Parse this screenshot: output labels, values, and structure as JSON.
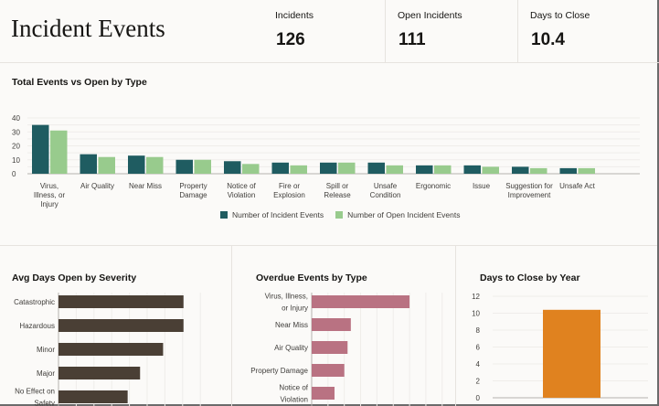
{
  "header": {
    "title": "Incident Events"
  },
  "kpis": [
    {
      "label": "Incidents",
      "value": "126"
    },
    {
      "label": "Open Incidents",
      "value": "111"
    },
    {
      "label": "Days to Close",
      "value": "10.4"
    }
  ],
  "colors": {
    "incidents": "#1f5c61",
    "open": "#98cb8d",
    "severity": "#4a3f35",
    "overdue": "#b97282",
    "days": "#e0821f"
  },
  "chart_data": [
    {
      "type": "bar",
      "title": "Total Events vs Open by Type",
      "ylim": [
        0,
        40
      ],
      "yticks": [
        "0",
        "10",
        "20",
        "30",
        "40"
      ],
      "grid": true,
      "legend": "bottom",
      "categories": [
        "Virus, Illness, or Injury",
        "Air Quality",
        "Near Miss",
        "Property Damage",
        "Notice of Violation",
        "Fire or Explosion",
        "Spill or Release",
        "Unsafe Condition",
        "Ergonomic",
        "Issue",
        "Suggestion for Improvement",
        "Unsafe Act"
      ],
      "series": [
        {
          "name": "Number of Incident Events",
          "values": [
            35,
            14,
            13,
            10,
            9,
            8,
            8,
            8,
            6,
            6,
            5,
            4
          ]
        },
        {
          "name": "Number of Open Incident Events",
          "values": [
            31,
            12,
            12,
            10,
            7,
            6,
            8,
            6,
            6,
            5,
            4,
            4
          ]
        }
      ]
    },
    {
      "type": "bar",
      "orientation": "horizontal",
      "title": "Avg Days Open by Severity",
      "categories": [
        "Catastrophic",
        "Hazardous",
        "Minor",
        "Major",
        "No Effect on Safety"
      ],
      "values": [
        7.05,
        7.05,
        5.9,
        4.6,
        3.9
      ],
      "xlim": [
        0,
        8
      ],
      "grid": true
    },
    {
      "type": "bar",
      "orientation": "horizontal",
      "title": "Overdue Events by Type",
      "categories": [
        "Virus, Illness, or Injury",
        "Near Miss",
        "Air Quality",
        "Property Damage",
        "Notice of Violation"
      ],
      "values": [
        6,
        2.4,
        2.2,
        2,
        1.4
      ],
      "xlim": [
        0,
        8
      ],
      "grid": true
    },
    {
      "type": "bar",
      "title": "Days to Close by Year",
      "ylim": [
        0,
        12
      ],
      "yticks": [
        "0",
        "2",
        "4",
        "6",
        "8",
        "10",
        "12"
      ],
      "values": [
        10.4
      ],
      "grid": true
    }
  ]
}
